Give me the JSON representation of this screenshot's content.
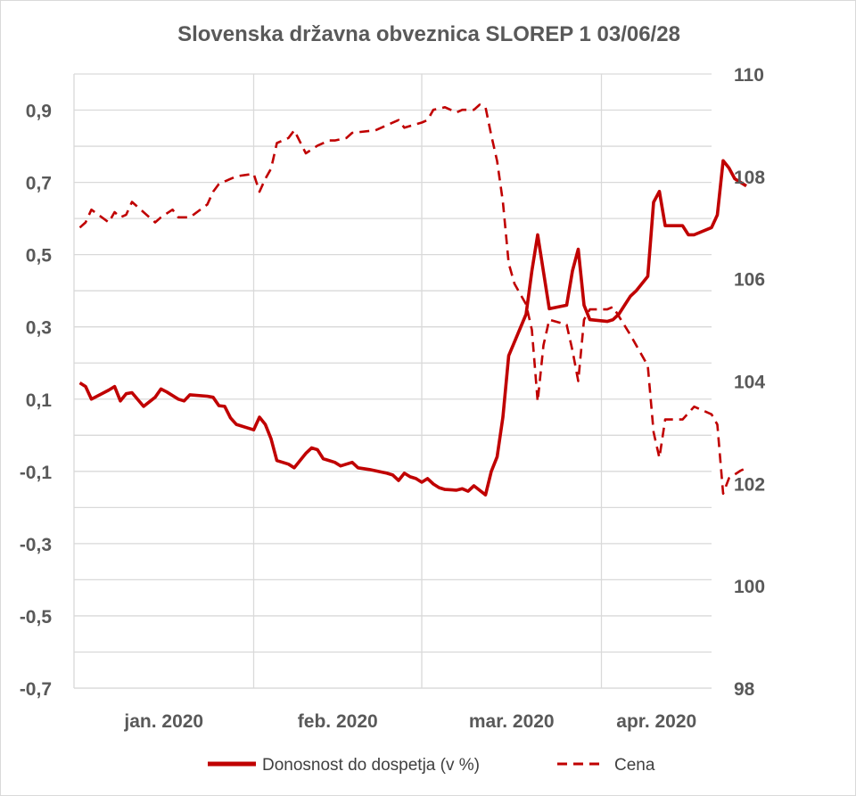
{
  "chart_data": {
    "type": "line",
    "title": "Slovenska državna obveznica SLOREP 1 03/06/28",
    "x_categories": [
      "jan. 2020",
      "feb. 2020",
      "mar. 2020",
      "apr. 2020"
    ],
    "x_range": [
      "2020-01-01",
      "2020-04-20"
    ],
    "y_left": {
      "ticks": [
        "0,9",
        "0,7",
        "0,5",
        "0,3",
        "0,1",
        "-0,1",
        "-0,3",
        "-0,5",
        "-0,7"
      ],
      "range": [
        -0.7,
        1.0
      ]
    },
    "y_right": {
      "ticks": [
        "110",
        "108",
        "106",
        "104",
        "102",
        "100",
        "98"
      ],
      "range": [
        98,
        110
      ]
    },
    "grid": true,
    "legend_position": "bottom",
    "colors": {
      "series": "#c00000",
      "grid": "#d9d9d9",
      "text": "#595959"
    },
    "series": [
      {
        "name": "Donosnost do dospetja (v %)",
        "axis": "left",
        "style": "solid",
        "points": [
          [
            "2020-01-02",
            0.145
          ],
          [
            "2020-01-03",
            0.135
          ],
          [
            "2020-01-04",
            0.1
          ],
          [
            "2020-01-07",
            0.125
          ],
          [
            "2020-01-08",
            0.135
          ],
          [
            "2020-01-09",
            0.095
          ],
          [
            "2020-01-10",
            0.115
          ],
          [
            "2020-01-11",
            0.118
          ],
          [
            "2020-01-13",
            0.08
          ],
          [
            "2020-01-15",
            0.105
          ],
          [
            "2020-01-16",
            0.128
          ],
          [
            "2020-01-17",
            0.12
          ],
          [
            "2020-01-19",
            0.1
          ],
          [
            "2020-01-20",
            0.095
          ],
          [
            "2020-01-21",
            0.112
          ],
          [
            "2020-01-24",
            0.108
          ],
          [
            "2020-01-25",
            0.105
          ],
          [
            "2020-01-26",
            0.082
          ],
          [
            "2020-01-27",
            0.08
          ],
          [
            "2020-01-28",
            0.048
          ],
          [
            "2020-01-29",
            0.03
          ],
          [
            "2020-01-31",
            0.02
          ],
          [
            "2020-02-01",
            0.015
          ],
          [
            "2020-02-02",
            0.05
          ],
          [
            "2020-02-03",
            0.03
          ],
          [
            "2020-02-04",
            -0.01
          ],
          [
            "2020-02-05",
            -0.07
          ],
          [
            "2020-02-07",
            -0.08
          ],
          [
            "2020-02-08",
            -0.09
          ],
          [
            "2020-02-10",
            -0.05
          ],
          [
            "2020-02-11",
            -0.035
          ],
          [
            "2020-02-12",
            -0.04
          ],
          [
            "2020-02-13",
            -0.065
          ],
          [
            "2020-02-15",
            -0.075
          ],
          [
            "2020-02-16",
            -0.085
          ],
          [
            "2020-02-18",
            -0.075
          ],
          [
            "2020-02-19",
            -0.09
          ],
          [
            "2020-02-21",
            -0.095
          ],
          [
            "2020-02-24",
            -0.105
          ],
          [
            "2020-02-25",
            -0.11
          ],
          [
            "2020-02-26",
            -0.125
          ],
          [
            "2020-02-27",
            -0.105
          ],
          [
            "2020-02-28",
            -0.115
          ],
          [
            "2020-02-29",
            -0.12
          ],
          [
            "2020-03-01",
            -0.13
          ],
          [
            "2020-03-02",
            -0.12
          ],
          [
            "2020-03-03",
            -0.135
          ],
          [
            "2020-03-04",
            -0.145
          ],
          [
            "2020-03-05",
            -0.15
          ],
          [
            "2020-03-07",
            -0.152
          ],
          [
            "2020-03-08",
            -0.148
          ],
          [
            "2020-03-09",
            -0.155
          ],
          [
            "2020-03-10",
            -0.14
          ],
          [
            "2020-03-12",
            -0.165
          ],
          [
            "2020-03-13",
            -0.1
          ],
          [
            "2020-03-14",
            -0.06
          ],
          [
            "2020-03-15",
            0.05
          ],
          [
            "2020-03-16",
            0.22
          ],
          [
            "2020-03-19",
            0.335
          ],
          [
            "2020-03-20",
            0.455
          ],
          [
            "2020-03-21",
            0.555
          ],
          [
            "2020-03-23",
            0.35
          ],
          [
            "2020-03-26",
            0.36
          ],
          [
            "2020-03-27",
            0.455
          ],
          [
            "2020-03-28",
            0.515
          ],
          [
            "2020-03-29",
            0.36
          ],
          [
            "2020-03-30",
            0.32
          ],
          [
            "2020-04-02",
            0.315
          ],
          [
            "2020-04-03",
            0.32
          ],
          [
            "2020-04-04",
            0.335
          ],
          [
            "2020-04-05",
            0.36
          ],
          [
            "2020-04-06",
            0.385
          ],
          [
            "2020-04-07",
            0.4
          ],
          [
            "2020-04-08",
            0.42
          ],
          [
            "2020-04-09",
            0.44
          ],
          [
            "2020-04-10",
            0.645
          ],
          [
            "2020-04-11",
            0.675
          ],
          [
            "2020-04-12",
            0.58
          ],
          [
            "2020-04-15",
            0.58
          ],
          [
            "2020-04-16",
            0.555
          ],
          [
            "2020-04-17",
            0.555
          ],
          [
            "2020-04-20",
            0.575
          ],
          [
            "2020-04-21",
            0.61
          ],
          [
            "2020-04-22",
            0.76
          ],
          [
            "2020-04-23",
            0.74
          ],
          [
            "2020-04-24",
            0.71
          ],
          [
            "2020-04-26",
            0.69
          ]
        ]
      },
      {
        "name": "Cena",
        "axis": "right",
        "style": "dashed",
        "points": [
          [
            "2020-01-02",
            107.0
          ],
          [
            "2020-01-03",
            107.1
          ],
          [
            "2020-01-04",
            107.35
          ],
          [
            "2020-01-07",
            107.1
          ],
          [
            "2020-01-08",
            107.3
          ],
          [
            "2020-01-09",
            107.2
          ],
          [
            "2020-01-10",
            107.25
          ],
          [
            "2020-01-11",
            107.5
          ],
          [
            "2020-01-13",
            107.3
          ],
          [
            "2020-01-15",
            107.1
          ],
          [
            "2020-01-16",
            107.2
          ],
          [
            "2020-01-18",
            107.35
          ],
          [
            "2020-01-19",
            107.2
          ],
          [
            "2020-01-21",
            107.2
          ],
          [
            "2020-01-24",
            107.45
          ],
          [
            "2020-01-25",
            107.7
          ],
          [
            "2020-01-26",
            107.85
          ],
          [
            "2020-01-28",
            107.95
          ],
          [
            "2020-01-29",
            108.0
          ],
          [
            "2020-02-01",
            108.05
          ],
          [
            "2020-02-02",
            107.7
          ],
          [
            "2020-02-03",
            107.95
          ],
          [
            "2020-02-04",
            108.15
          ],
          [
            "2020-02-05",
            108.65
          ],
          [
            "2020-02-07",
            108.75
          ],
          [
            "2020-02-08",
            108.9
          ],
          [
            "2020-02-10",
            108.45
          ],
          [
            "2020-02-12",
            108.6
          ],
          [
            "2020-02-14",
            108.7
          ],
          [
            "2020-02-15",
            108.7
          ],
          [
            "2020-02-17",
            108.75
          ],
          [
            "2020-02-18",
            108.85
          ],
          [
            "2020-02-22",
            108.9
          ],
          [
            "2020-02-24",
            109.0
          ],
          [
            "2020-02-26",
            109.1
          ],
          [
            "2020-02-27",
            108.95
          ],
          [
            "2020-03-01",
            109.05
          ],
          [
            "2020-03-02",
            109.1
          ],
          [
            "2020-03-03",
            109.3
          ],
          [
            "2020-03-05",
            109.35
          ],
          [
            "2020-03-07",
            109.25
          ],
          [
            "2020-03-08",
            109.3
          ],
          [
            "2020-03-10",
            109.3
          ],
          [
            "2020-03-11",
            109.4
          ],
          [
            "2020-03-12",
            109.35
          ],
          [
            "2020-03-13",
            108.8
          ],
          [
            "2020-03-14",
            108.3
          ],
          [
            "2020-03-15",
            107.5
          ],
          [
            "2020-03-16",
            106.3
          ],
          [
            "2020-03-17",
            105.9
          ],
          [
            "2020-03-19",
            105.5
          ],
          [
            "2020-03-20",
            105.0
          ],
          [
            "2020-03-21",
            103.6
          ],
          [
            "2020-03-22",
            104.7
          ],
          [
            "2020-03-23",
            105.2
          ],
          [
            "2020-03-26",
            105.1
          ],
          [
            "2020-03-27",
            104.6
          ],
          [
            "2020-03-28",
            104.0
          ],
          [
            "2020-03-29",
            105.2
          ],
          [
            "2020-03-30",
            105.4
          ],
          [
            "2020-04-02",
            105.4
          ],
          [
            "2020-04-03",
            105.45
          ],
          [
            "2020-04-06",
            104.9
          ],
          [
            "2020-04-07",
            104.7
          ],
          [
            "2020-04-08",
            104.5
          ],
          [
            "2020-04-09",
            104.3
          ],
          [
            "2020-04-10",
            103.0
          ],
          [
            "2020-04-11",
            102.5
          ],
          [
            "2020-04-12",
            103.25
          ],
          [
            "2020-04-15",
            103.25
          ],
          [
            "2020-04-17",
            103.5
          ],
          [
            "2020-04-20",
            103.35
          ],
          [
            "2020-04-21",
            103.15
          ],
          [
            "2020-04-22",
            101.8
          ],
          [
            "2020-04-23",
            102.1
          ],
          [
            "2020-04-25",
            102.25
          ],
          [
            "2020-04-26",
            102.3
          ]
        ]
      }
    ]
  }
}
